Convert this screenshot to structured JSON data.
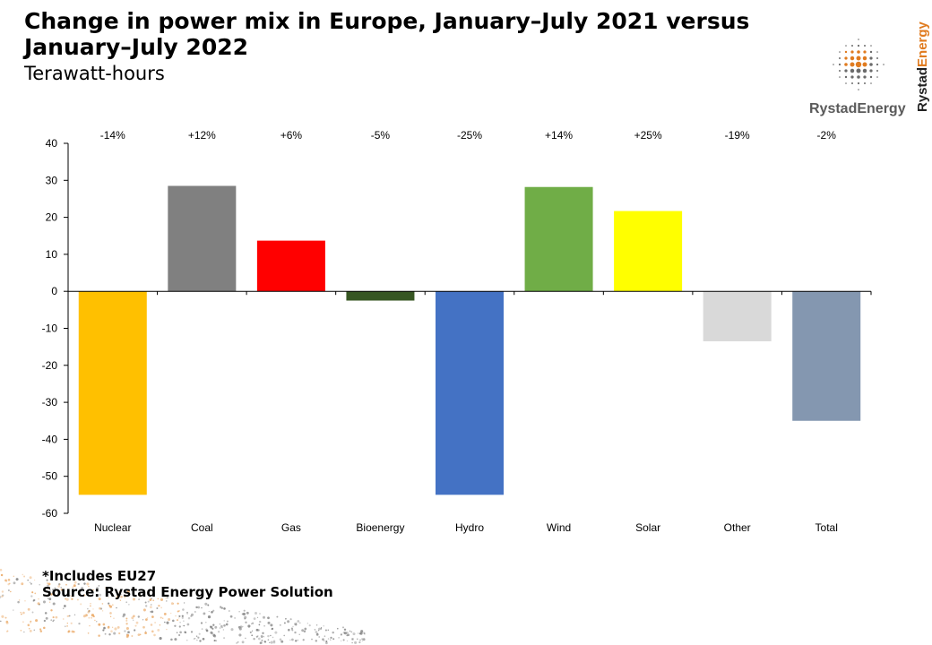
{
  "header": {
    "title": "Change in power mix in Europe, January–July 2021 versus January–July 2022",
    "subtitle": "Terawatt-hours"
  },
  "logo": {
    "name": "RystadEnergy",
    "text_part1": "Rystad",
    "text_part2": "Energy",
    "colors": {
      "primary": "#5a5a5a",
      "accent": "#e07b1f"
    }
  },
  "chart_data": {
    "type": "bar",
    "title": "",
    "xlabel": "",
    "ylabel": "",
    "ylim": [
      -60,
      40
    ],
    "yticks": [
      40,
      30,
      20,
      10,
      0,
      -10,
      -20,
      -30,
      -40,
      -50,
      -60
    ],
    "grid": false,
    "legend": "none",
    "categories": [
      "Nuclear",
      "Coal",
      "Gas",
      "Bioenergy",
      "Hydro",
      "Wind",
      "Solar",
      "Other",
      "Total"
    ],
    "values": [
      -55,
      28.5,
      13.7,
      -2.5,
      -55,
      28.2,
      21.7,
      -13.5,
      -35
    ],
    "percent_labels": [
      "-14%",
      "+12%",
      "+6%",
      "-5%",
      "-25%",
      "+14%",
      "+25%",
      "-19%",
      "-2%"
    ],
    "colors": [
      "#FFC000",
      "#808080",
      "#FF0000",
      "#375623",
      "#4472C4",
      "#70AD47",
      "#FFFF00",
      "#D9D9D9",
      "#8497B0"
    ]
  },
  "footnotes": {
    "includes": "*Includes  EU27",
    "source": "Source: Rystad Energy Power Solution"
  }
}
